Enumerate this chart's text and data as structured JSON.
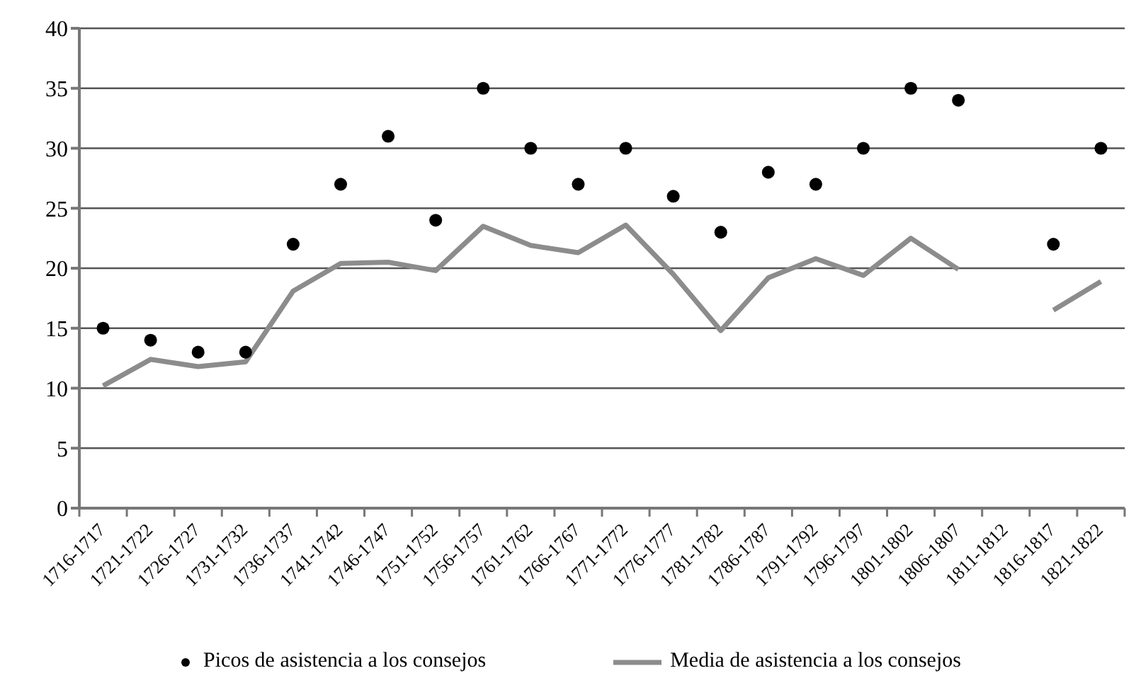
{
  "chart_data": {
    "type": "line",
    "categories": [
      "1716-1717",
      "1721-1722",
      "1726-1727",
      "1731-1732",
      "1736-1737",
      "1741-1742",
      "1746-1747",
      "1751-1752",
      "1756-1757",
      "1761-1762",
      "1766-1767",
      "1771-1772",
      "1776-1777",
      "1781-1782",
      "1786-1787",
      "1791-1792",
      "1796-1797",
      "1801-1802",
      "1806-1807",
      "1811-1812",
      "1816-1817",
      "1821-1822"
    ],
    "series": [
      {
        "name": "Picos de asistencia a los consejos",
        "type": "scatter",
        "marker": "circle",
        "color": "#000000",
        "values": [
          15,
          14,
          13,
          13,
          22,
          27,
          31,
          24,
          35,
          30,
          27,
          30,
          26,
          23,
          28,
          27,
          30,
          35,
          34,
          null,
          22,
          30
        ]
      },
      {
        "name": "Media de asistencia a los consejos",
        "marker": "none",
        "color": "#8c8c8c",
        "values": [
          10.2,
          12.4,
          11.8,
          12.2,
          18.1,
          20.4,
          20.5,
          19.8,
          23.5,
          21.9,
          21.3,
          23.6,
          19.5,
          14.8,
          19.2,
          20.8,
          19.4,
          22.5,
          19.9,
          null,
          16.5,
          18.9
        ]
      }
    ],
    "ylim": [
      0,
      40
    ],
    "yticks": [
      0,
      5,
      10,
      15,
      20,
      25,
      30,
      35,
      40
    ],
    "grid": "y",
    "legend": "bottom"
  }
}
